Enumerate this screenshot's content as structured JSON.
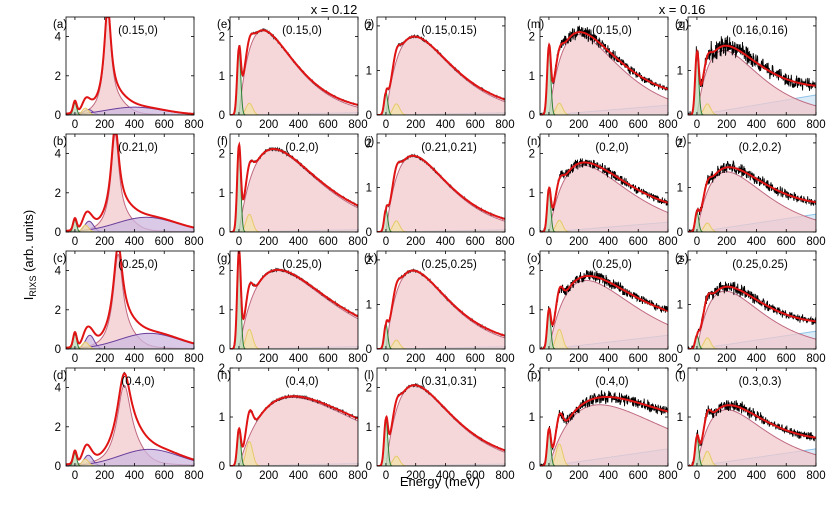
{
  "chart_data": {
    "type": "line",
    "group_titles": [
      "x = 0.12",
      "x = 0.16"
    ],
    "xlabel": "Energy (meV)",
    "ylabel_main": "I",
    "ylabel_sub": "RIXS",
    "ylabel_rest": " (arb. units)",
    "x_ticks": [
      0,
      200,
      400,
      600,
      800
    ],
    "xlim": [
      -60,
      800
    ],
    "colors": {
      "data": "#000000",
      "fit": "#e01414",
      "fill": "#f2c9cd",
      "fill_line": "#c06a80",
      "elastic": "#2e7d32",
      "phonon": "#e8c86a",
      "magnon_a": "#6a3d9a",
      "background": "#8ec3e8"
    },
    "panels": [
      {
        "tag": "(a)",
        "label": "(0.15,0)",
        "col": 0,
        "row": 0,
        "ylim": [
          0,
          5
        ],
        "yticks": [
          0,
          2,
          4
        ],
        "comp": {
          "el": 0.6,
          "ph": 0.35,
          "pk": [
            220,
            4.8,
            28,
            0.55
          ],
          "pl": [
            [
              90,
              0.28,
              30
            ],
            [
              400,
              0.4,
              190
            ]
          ],
          "bg": 0,
          "noise": 0.01
        }
      },
      {
        "tag": "(b)",
        "label": "(0.21,0)",
        "col": 0,
        "row": 1,
        "ylim": [
          0,
          5
        ],
        "yticks": [
          0,
          2,
          4
        ],
        "comp": {
          "el": 0.6,
          "ph": 0.35,
          "pk": [
            270,
            4.5,
            32,
            0.55
          ],
          "pl": [
            [
              95,
              0.55,
              30
            ],
            [
              480,
              0.75,
              200
            ]
          ],
          "bg": 0,
          "noise": 0.01
        }
      },
      {
        "tag": "(c)",
        "label": "(0.25,0)",
        "col": 0,
        "row": 2,
        "ylim": [
          0,
          5
        ],
        "yticks": [
          0,
          2,
          4
        ],
        "comp": {
          "el": 0.75,
          "ph": 0.35,
          "pk": [
            290,
            4.3,
            38,
            0.6
          ],
          "pl": [
            [
              100,
              0.7,
              30
            ],
            [
              500,
              0.8,
              200
            ]
          ],
          "bg": 0,
          "noise": 0.01
        }
      },
      {
        "tag": "(d)",
        "label": "(0.4,0)",
        "col": 0,
        "row": 3,
        "ylim": [
          0,
          5
        ],
        "yticks": [
          0,
          2,
          4
        ],
        "comp": {
          "el": 0.65,
          "ph": 0.35,
          "pk": [
            330,
            3.5,
            55,
            0.7
          ],
          "pl": [
            [
              90,
              0.55,
              30
            ],
            [
              500,
              0.85,
              200
            ]
          ],
          "bg": 0,
          "noise": 0.01
        }
      },
      {
        "tag": "(e)",
        "label": "(0.15,0)",
        "col": 1,
        "row": 0,
        "ylim": [
          0,
          2.5
        ],
        "yticks": [
          0,
          1,
          2
        ],
        "comp": {
          "el": 1.7,
          "ph": 0.3,
          "pk": [
            160,
            2.15,
            1.0,
            4.5
          ],
          "pl": [],
          "bg": 0.06,
          "noise": 0.015
        }
      },
      {
        "tag": "(f)",
        "label": "(0.2,0)",
        "col": 1,
        "row": 1,
        "ylim": [
          0,
          2.5
        ],
        "yticks": [
          0,
          1,
          2
        ],
        "comp": {
          "el": 2.2,
          "ph": 0.45,
          "pk": [
            230,
            2.1,
            1.0,
            4.5
          ],
          "pl": [],
          "bg": 0.06,
          "noise": 0.015
        }
      },
      {
        "tag": "(g)",
        "label": "(0.25,0)",
        "col": 1,
        "row": 2,
        "ylim": [
          0,
          2.5
        ],
        "yticks": [
          0,
          1,
          2
        ],
        "comp": {
          "el": 2.5,
          "ph": 0.5,
          "pk": [
            260,
            2.0,
            1.0,
            4.5
          ],
          "pl": [],
          "bg": 0.06,
          "noise": 0.015
        }
      },
      {
        "tag": "(h)",
        "label": "(0.4,0)",
        "col": 1,
        "row": 3,
        "ylim": [
          0,
          2.0
        ],
        "yticks": [
          0,
          1,
          2
        ],
        "comp": {
          "el": 0.75,
          "ph": 0.5,
          "pk": [
            360,
            1.4,
            1.0,
            4.5
          ],
          "pl": [],
          "bg": 0.05,
          "noise": 0.015
        }
      },
      {
        "tag": "(i)",
        "label": "(0.15,0.15)",
        "col": 2,
        "row": 0,
        "ylim": [
          0,
          2.2
        ],
        "yticks": [
          0,
          1,
          2
        ],
        "comp": {
          "el": 0.5,
          "ph": 0.25,
          "pk": [
            190,
            1.75,
            1.0,
            4.5
          ],
          "pl": [],
          "bg": 0.05,
          "noise": 0.015
        }
      },
      {
        "tag": "(j)",
        "label": "(0.21,0.21)",
        "col": 2,
        "row": 1,
        "ylim": [
          0,
          2.2
        ],
        "yticks": [
          0,
          1,
          2
        ],
        "comp": {
          "el": 0.5,
          "ph": 0.25,
          "pk": [
            180,
            1.7,
            1.0,
            4.5
          ],
          "pl": [],
          "bg": 0.05,
          "noise": 0.015
        }
      },
      {
        "tag": "(k)",
        "label": "(0.25,0.25)",
        "col": 2,
        "row": 2,
        "ylim": [
          0,
          2.2
        ],
        "yticks": [
          0,
          1,
          2
        ],
        "comp": {
          "el": 0.55,
          "ph": 0.2,
          "pk": [
            180,
            1.75,
            1.0,
            4.5
          ],
          "pl": [],
          "bg": 0.05,
          "noise": 0.015
        }
      },
      {
        "tag": "(l)",
        "label": "(0.31,0.31)",
        "col": 2,
        "row": 3,
        "ylim": [
          0,
          2.5
        ],
        "yticks": [
          0,
          1,
          2
        ],
        "comp": {
          "el": 1.2,
          "ph": 0.25,
          "pk": [
            190,
            2.05,
            1.0,
            4.5
          ],
          "pl": [],
          "bg": 0.05,
          "noise": 0.015
        }
      },
      {
        "tag": "(m)",
        "label": "(0.15,0)",
        "col": 3,
        "row": 0,
        "ylim": [
          0,
          2.5
        ],
        "yticks": [
          0,
          1,
          2
        ],
        "comp": {
          "el": 1.75,
          "ph": 0.3,
          "pk": [
            200,
            2.05,
            1.0,
            4.5
          ],
          "pl": [],
          "bg": 0.25,
          "noise": 0.07
        }
      },
      {
        "tag": "(n)",
        "label": "(0.2,0)",
        "col": 3,
        "row": 1,
        "ylim": [
          0,
          2.5
        ],
        "yticks": [
          0,
          1,
          2
        ],
        "comp": {
          "el": 1.1,
          "ph": 0.3,
          "pk": [
            230,
            1.7,
            1.0,
            4.5
          ],
          "pl": [],
          "bg": 0.25,
          "noise": 0.07
        }
      },
      {
        "tag": "(o)",
        "label": "(0.25,0)",
        "col": 3,
        "row": 2,
        "ylim": [
          0,
          2.5
        ],
        "yticks": [
          0,
          1,
          2
        ],
        "comp": {
          "el": 1.0,
          "ph": 0.5,
          "pk": [
            250,
            1.75,
            1.0,
            4.5
          ],
          "pl": [],
          "bg": 0.35,
          "noise": 0.07
        }
      },
      {
        "tag": "(p)",
        "label": "(0.4,0)",
        "col": 3,
        "row": 3,
        "ylim": [
          0,
          2.0
        ],
        "yticks": [
          0,
          1,
          2
        ],
        "comp": {
          "el": 0.75,
          "ph": 0.45,
          "pk": [
            340,
            1.25,
            1.0,
            4.5
          ],
          "pl": [],
          "bg": 0.35,
          "noise": 0.07
        }
      },
      {
        "tag": "(q)",
        "label": "(0.16,0.16)",
        "col": 4,
        "row": 0,
        "ylim": [
          0,
          2.2
        ],
        "yticks": [
          0,
          1,
          2
        ],
        "comp": {
          "el": 1.4,
          "ph": 0.25,
          "pk": [
            180,
            1.45,
            1.0,
            4.5
          ],
          "pl": [],
          "bg": 0.45,
          "noise": 0.12
        }
      },
      {
        "tag": "(r)",
        "label": "(0.2,0.2)",
        "col": 4,
        "row": 1,
        "ylim": [
          0,
          2.2
        ],
        "yticks": [
          0,
          1,
          2
        ],
        "comp": {
          "el": 0.45,
          "ph": 0.2,
          "pk": [
            200,
            1.35,
            1.0,
            4.5
          ],
          "pl": [],
          "bg": 0.4,
          "noise": 0.08
        }
      },
      {
        "tag": "(s)",
        "label": "(0.25,0.25)",
        "col": 4,
        "row": 2,
        "ylim": [
          0,
          2.2
        ],
        "yticks": [
          0,
          1,
          2
        ],
        "comp": {
          "el": 0.3,
          "ph": 0.25,
          "pk": [
            190,
            1.3,
            1.0,
            4.5
          ],
          "pl": [],
          "bg": 0.4,
          "noise": 0.08
        }
      },
      {
        "tag": "(t)",
        "label": "(0.3,0.3)",
        "col": 4,
        "row": 3,
        "ylim": [
          0,
          2.0
        ],
        "yticks": [
          0,
          1,
          2
        ],
        "comp": {
          "el": 0.6,
          "ph": 0.3,
          "pk": [
            200,
            1.15,
            1.0,
            4.5
          ],
          "pl": [],
          "bg": 0.35,
          "noise": 0.08
        }
      }
    ]
  }
}
